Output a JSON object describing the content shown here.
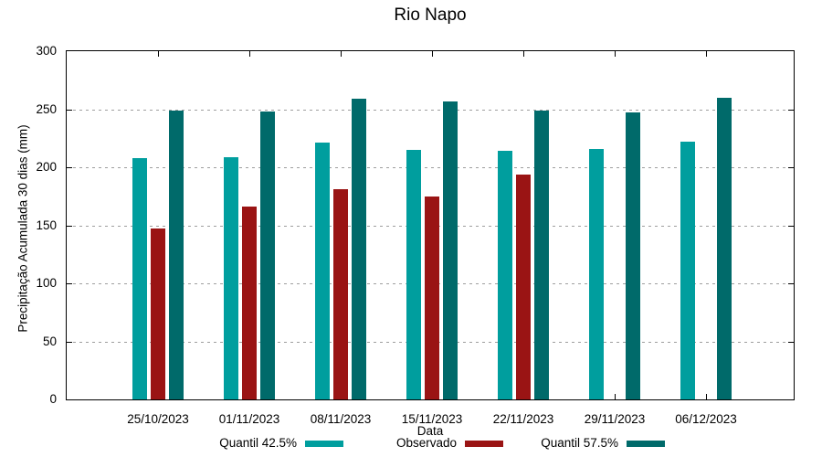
{
  "title": "Rio Napo",
  "axes": {
    "x_label": "Data",
    "y_label": "Precipitação Acumulada 30 dias (mm)",
    "y_tick_labels": [
      "0",
      "50",
      "100",
      "150",
      "200",
      "250",
      "300"
    ]
  },
  "chart_data": {
    "type": "bar",
    "title": "Rio Napo",
    "xlabel": "Data",
    "ylabel": "Precipitação Acumulada 30 dias (mm)",
    "ylim": [
      0,
      300
    ],
    "y_tick_step": 50,
    "grid": "horizontal-dotted",
    "grid_color": "#9e9e9e",
    "axis_color": "#000000",
    "legend_position": "bottom-center",
    "categories": [
      "25/10/2023",
      "01/11/2023",
      "08/11/2023",
      "15/11/2023",
      "22/11/2023",
      "29/11/2023",
      "06/12/2023"
    ],
    "series": [
      {
        "name": "Quantil 42.5%",
        "color": "#009E9E",
        "values": [
          208,
          209,
          221,
          215,
          214,
          216,
          222
        ]
      },
      {
        "name": "Observado",
        "color": "#9A1414",
        "values": [
          147,
          166,
          181,
          175,
          194,
          null,
          null
        ]
      },
      {
        "name": "Quantil 57.5%",
        "color": "#006A6A",
        "values": [
          249,
          248,
          259,
          257,
          249,
          247,
          260
        ]
      }
    ]
  }
}
